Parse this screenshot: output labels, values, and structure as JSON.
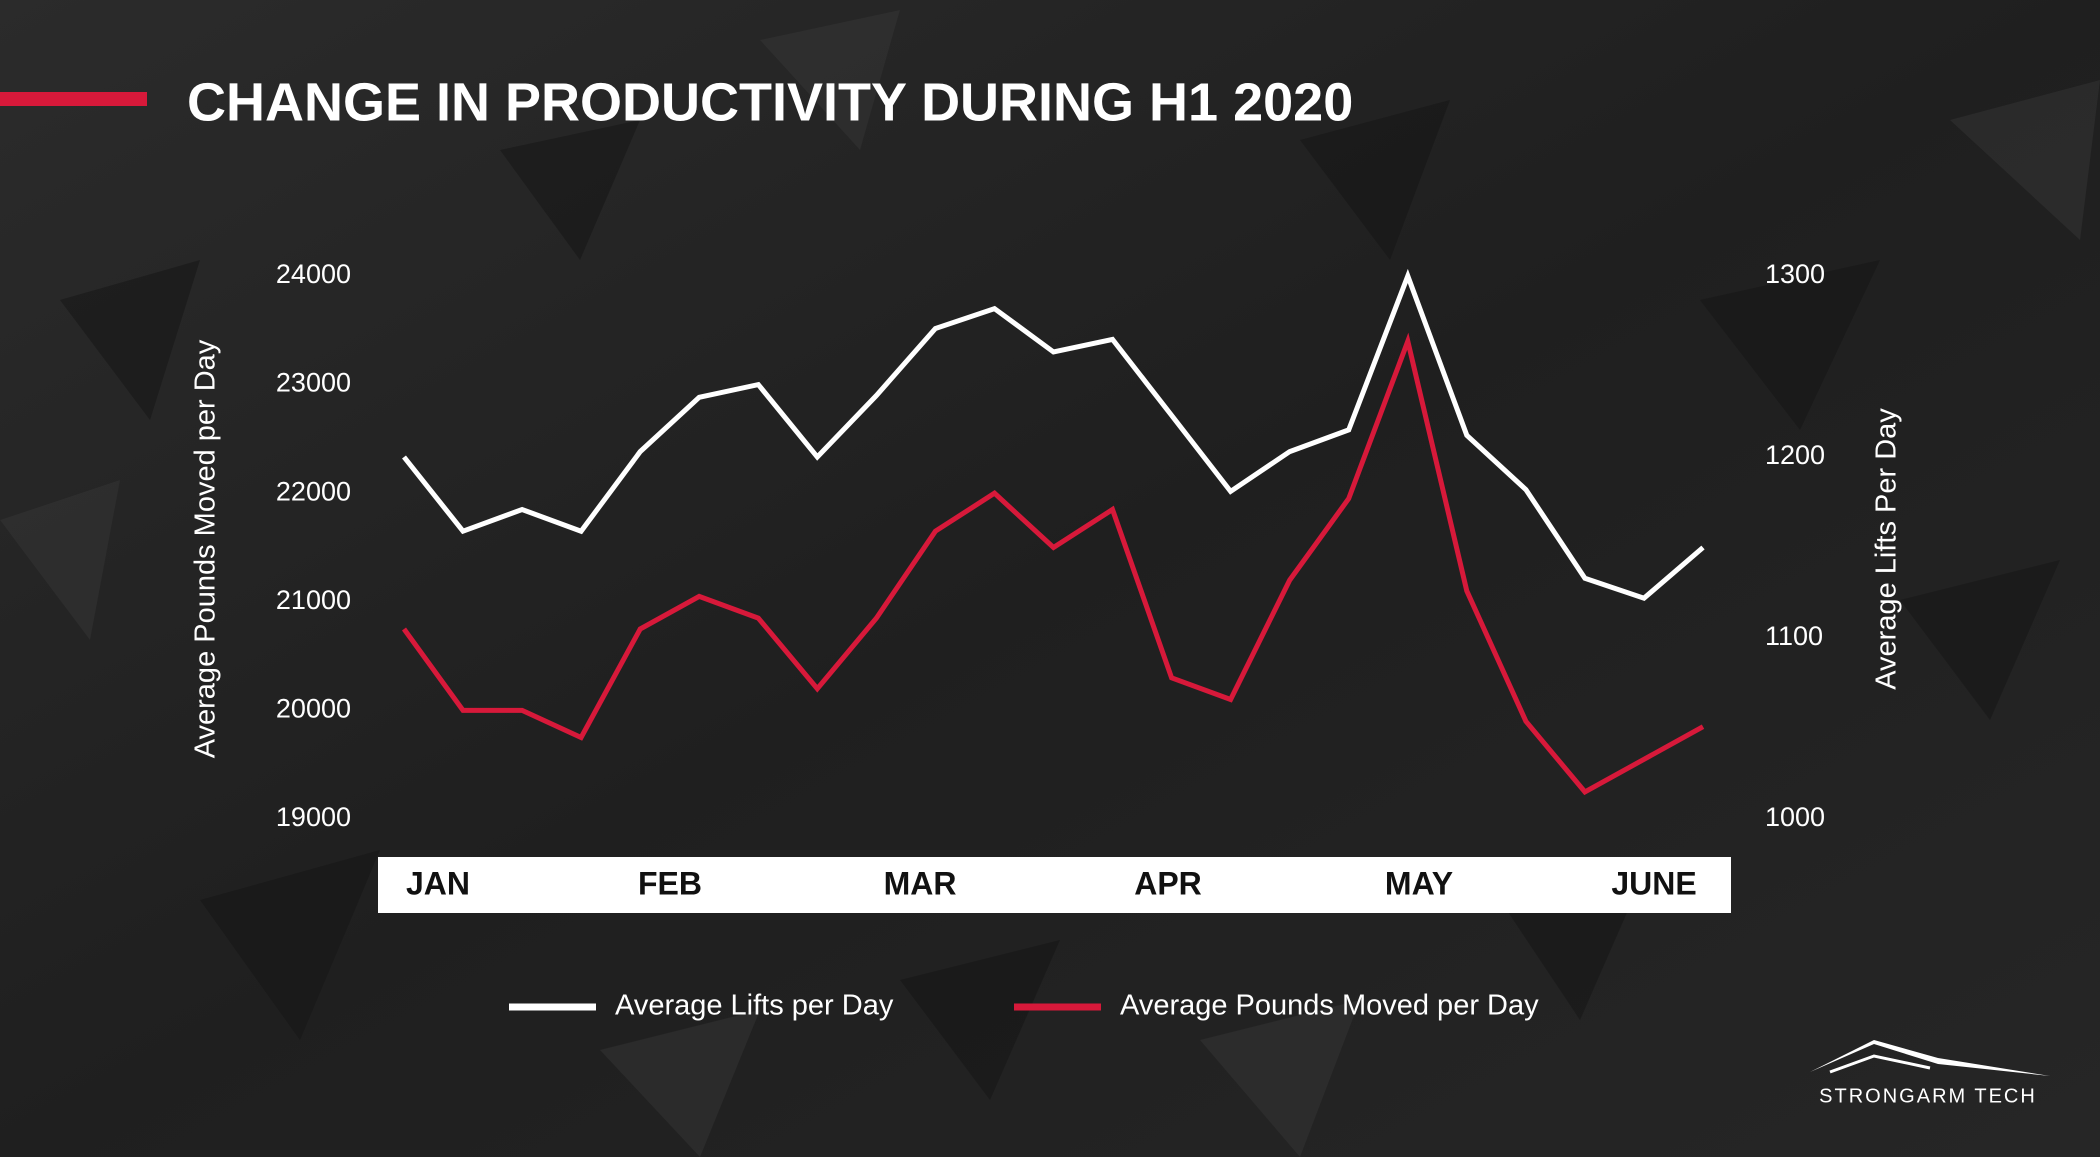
{
  "chart_data": {
    "type": "line",
    "title": "CHANGE IN PRODUCTIVITY DURING H1 2020",
    "y_label": "Average Pounds Moved per Day",
    "y2_label": "Average Lifts Per Day",
    "x_axis_labels": [
      "JAN",
      "FEB",
      "MAR",
      "APR",
      "MAY",
      "JUNE"
    ],
    "ylim": [
      19000,
      24000
    ],
    "yticks": [
      19000,
      20000,
      21000,
      22000,
      23000,
      24000
    ],
    "y2lim": [
      1000,
      1300
    ],
    "y2ticks": [
      1000,
      1100,
      1200,
      1300
    ],
    "series": [
      {
        "name": "Average Lifts per Day",
        "color": "#ffffff",
        "axis": "y2",
        "values": [
          1200,
          1159,
          1171,
          1159,
          1203,
          1233,
          1240,
          1200,
          1234,
          1271,
          1282,
          1258,
          1265,
          1223,
          1181,
          1203,
          1215,
          1300,
          1212,
          1182,
          1133,
          1122,
          1150
        ]
      },
      {
        "name": "Average Pounds Moved per Day",
        "color": "#d7193a",
        "axis": "y",
        "values": [
          20750,
          20000,
          20000,
          19750,
          20750,
          21050,
          20850,
          20200,
          20850,
          21650,
          22000,
          21500,
          21850,
          20300,
          20100,
          21200,
          21950,
          23400,
          21100,
          19900,
          19250,
          19550,
          19850
        ]
      }
    ],
    "logo": "STRONGARM TECH"
  }
}
